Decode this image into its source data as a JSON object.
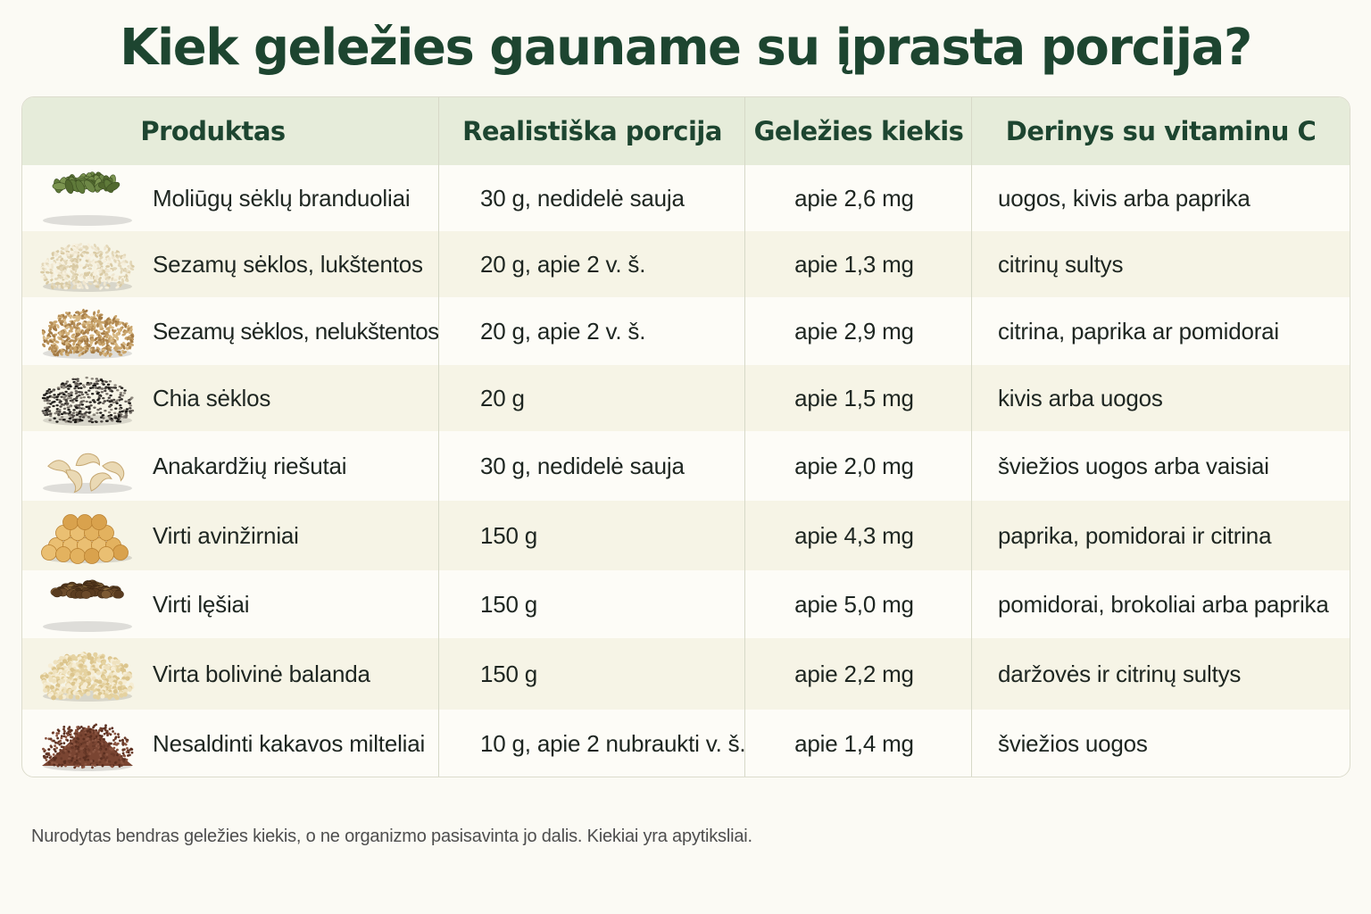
{
  "title": "Kiek geležies gauname su įprasta porcija?",
  "table": {
    "headers": [
      "Produktas",
      "Realistiška porcija",
      "Geležies kiekis",
      "Derinys su vitaminu C"
    ],
    "rows": [
      {
        "product": "Moliūgų sėklų branduoliai",
        "portion": "30 g, nedidelė sauja",
        "iron": "apie 2,6 mg",
        "vitc": "uogos, kivis arba paprika",
        "icon": "pumpkin-seeds-icon"
      },
      {
        "product": "Sezamų sėklos, lukštentos",
        "portion": "20 g, apie 2 v. š.",
        "iron": "apie 1,3 mg",
        "vitc": "citrinų sultys",
        "icon": "hulled-sesame-icon"
      },
      {
        "product": "Sezamų sėklos, nelukštentos",
        "portion": "20 g, apie 2 v. š.",
        "iron": "apie 2,9 mg",
        "vitc": "citrina, paprika ar pomidorai",
        "icon": "unhulled-sesame-icon"
      },
      {
        "product": "Chia sėklos",
        "portion": "20 g",
        "iron": "apie 1,5 mg",
        "vitc": "kivis arba uogos",
        "icon": "chia-seeds-icon"
      },
      {
        "product": "Anakardžių riešutai",
        "portion": "30 g, nedidelė sauja",
        "iron": "apie 2,0 mg",
        "vitc": "šviežios uogos arba vaisiai",
        "icon": "cashew-icon"
      },
      {
        "product": "Virti avinžirniai",
        "portion": "150 g",
        "iron": "apie 4,3 mg",
        "vitc": "paprika, pomidorai ir citrina",
        "icon": "chickpeas-icon"
      },
      {
        "product": "Virti lęšiai",
        "portion": "150 g",
        "iron": "apie 5,0 mg",
        "vitc": "pomidorai, brokoliai arba paprika",
        "icon": "lentils-icon"
      },
      {
        "product": "Virta bolivinė balanda",
        "portion": "150 g",
        "iron": "apie 2,2 mg",
        "vitc": "daržovės ir citrinų sultys",
        "icon": "quinoa-icon"
      },
      {
        "product": "Nesaldinti kakavos milteliai",
        "portion": "10 g, apie 2 nubraukti v. š.",
        "iron": "apie 1,4 mg",
        "vitc": "šviežios uogos",
        "icon": "cocoa-powder-icon"
      }
    ]
  },
  "footnote": "Nurodytas bendras geležies kiekis, o ne organizmo pasisavinta jo dalis. Kiekiai yra apytiksliai."
}
